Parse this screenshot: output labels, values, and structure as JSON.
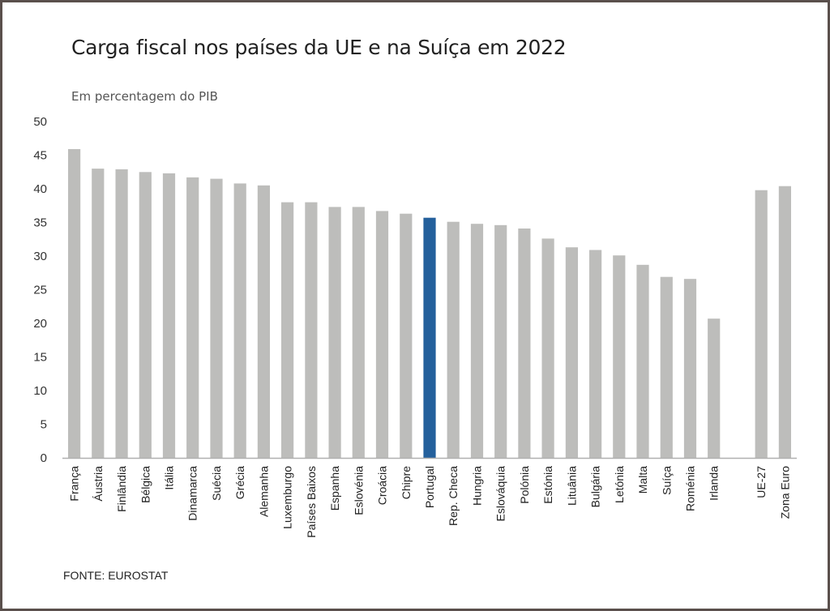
{
  "chart_data": {
    "type": "bar",
    "title": "Carga fiscal nos países da UE e na Suíça em 2022",
    "subtitle": "Em percentagem do PIB",
    "source": "FONTE: EUROSTAT",
    "xlabel": "",
    "ylabel": "",
    "ylim": [
      0,
      50
    ],
    "yticks": [
      0,
      5,
      10,
      15,
      20,
      25,
      30,
      35,
      40,
      45,
      50
    ],
    "grid": false,
    "legend": "none",
    "highlight_category": "Portugal",
    "colors": {
      "default": "#bdbdbb",
      "highlight": "#24609c",
      "axis": "#b0b0b0"
    },
    "categories": [
      "França",
      "Áustria",
      "Finlândia",
      "Bélgica",
      "Itália",
      "Dinamarca",
      "Suécia",
      "Grécia",
      "Alemanha",
      "Luxemburgo",
      "Países Baixos",
      "Espanha",
      "Eslovénia",
      "Croácia",
      "Chipre",
      "Portugal",
      "Rep. Checa",
      "Hungria",
      "Eslováquia",
      "Polónia",
      "Estónia",
      "Lituânia",
      "Bulgária",
      "Letónia",
      "Malta",
      "Suíça",
      "Roménia",
      "Irlanda",
      "",
      "UE-27",
      "Zona Euro"
    ],
    "values": [
      45.9,
      43.0,
      42.9,
      42.5,
      42.3,
      41.7,
      41.5,
      40.8,
      40.5,
      38.0,
      38.0,
      37.3,
      37.3,
      36.7,
      36.3,
      35.7,
      35.1,
      34.8,
      34.6,
      34.1,
      32.6,
      31.3,
      30.9,
      30.1,
      28.7,
      26.9,
      26.6,
      20.7,
      null,
      39.8,
      40.4
    ]
  }
}
